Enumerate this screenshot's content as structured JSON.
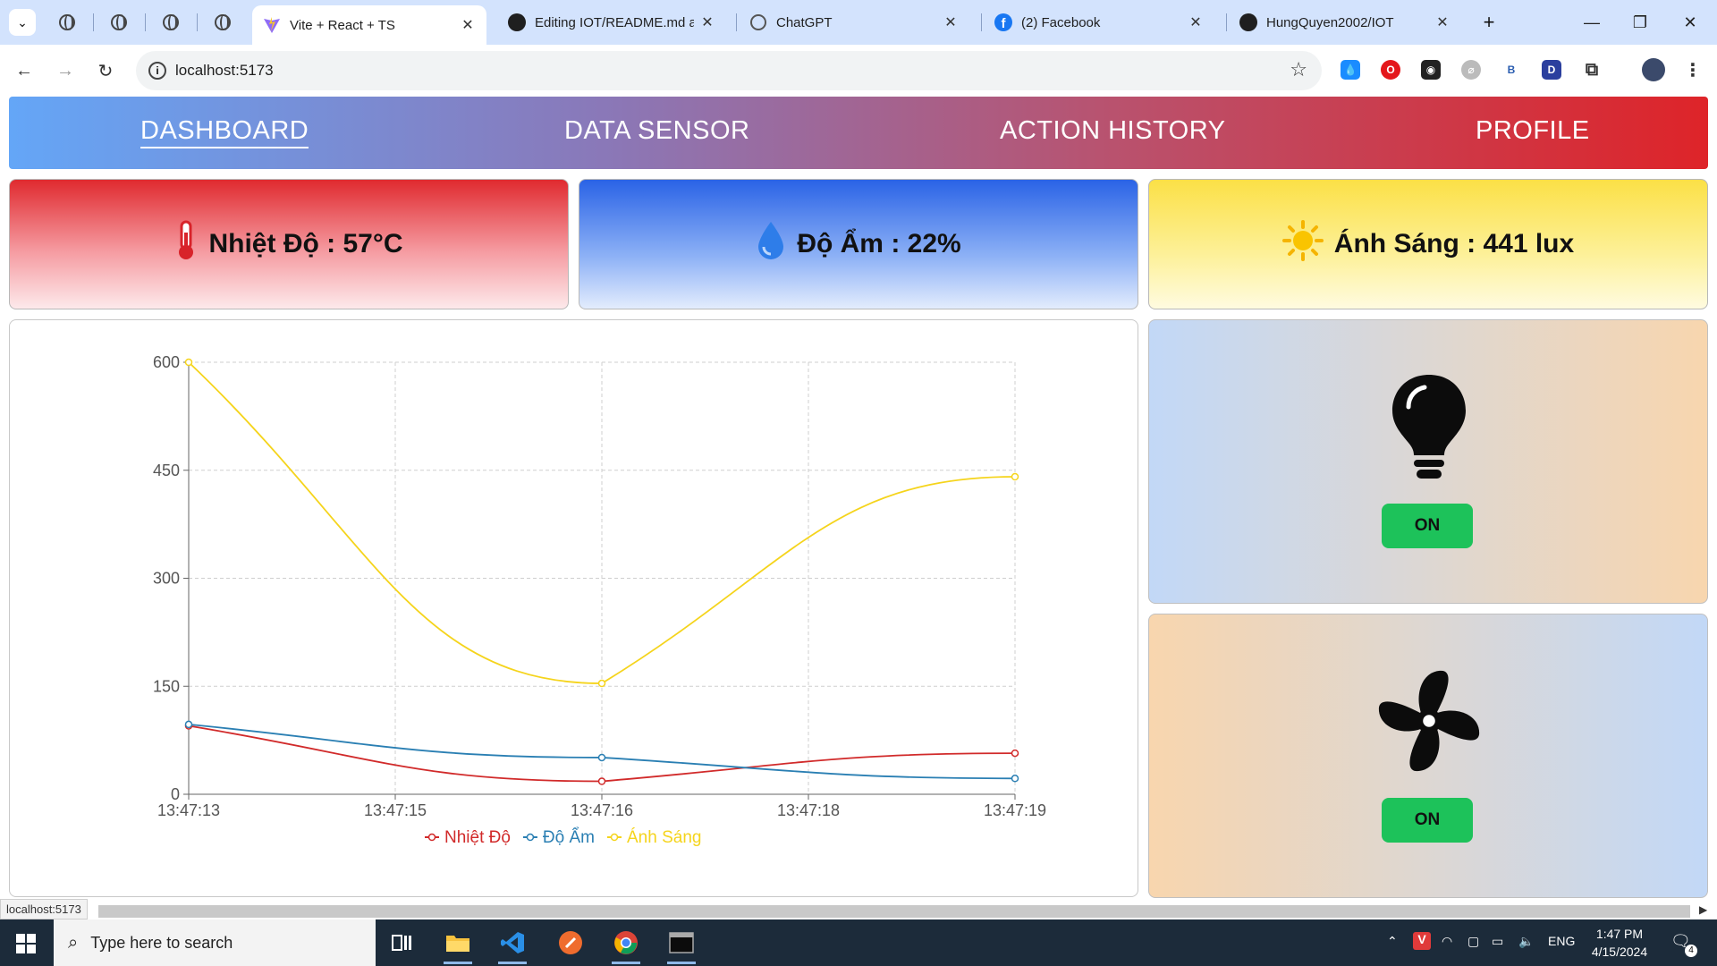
{
  "browser": {
    "tabs": [
      {
        "title": "Vite + React + TS",
        "active": true
      },
      {
        "title": "Editing IOT/README.md at main"
      },
      {
        "title": "ChatGPT"
      },
      {
        "title": "(2) Facebook"
      },
      {
        "title": "HungQuyen2002/IOT"
      }
    ],
    "url": "localhost:5173",
    "status_url": "localhost:5173",
    "extensions": [
      "B",
      "D"
    ]
  },
  "nav": {
    "items": [
      "DASHBOARD",
      "DATA SENSOR",
      "ACTION HISTORY",
      "PROFILE"
    ],
    "active": "DASHBOARD"
  },
  "cards": {
    "temperature": {
      "label": "Nhiệt Độ : 57°C",
      "icon": "thermometer-icon"
    },
    "humidity": {
      "label": "Độ Ẩm : 22%",
      "icon": "water-drop-icon"
    },
    "light": {
      "label": "Ánh Sáng : 441 lux",
      "icon": "sun-icon"
    }
  },
  "devices": {
    "light": {
      "icon": "light-bulb-icon",
      "button": "ON"
    },
    "fan": {
      "icon": "fan-icon",
      "button": "ON"
    }
  },
  "chart_data": {
    "type": "line",
    "x": [
      "13:47:13",
      "13:47:15",
      "13:47:16",
      "13:47:18",
      "13:47:19"
    ],
    "series": [
      {
        "name": "Nhiệt Độ",
        "color": "#d12a2a",
        "x": [
          "13:47:13",
          "13:47:16",
          "13:47:19"
        ],
        "values": [
          95,
          18,
          57
        ]
      },
      {
        "name": "Độ Ẩm",
        "color": "#2a7fb3",
        "x": [
          "13:47:13",
          "13:47:16",
          "13:47:19"
        ],
        "values": [
          97,
          51,
          22
        ]
      },
      {
        "name": "Ánh Sáng",
        "color": "#f5d41c",
        "x": [
          "13:47:13",
          "13:47:16",
          "13:47:19"
        ],
        "values": [
          600,
          154,
          441
        ]
      }
    ],
    "yticks": [
      0,
      150,
      300,
      450,
      600
    ],
    "ylim": [
      0,
      600
    ],
    "grid": true,
    "legend": "bottom"
  },
  "taskbar": {
    "search_placeholder": "Type here to search",
    "language": "ENG",
    "time": "1:47 PM",
    "date": "4/15/2024",
    "notifications": "4"
  }
}
